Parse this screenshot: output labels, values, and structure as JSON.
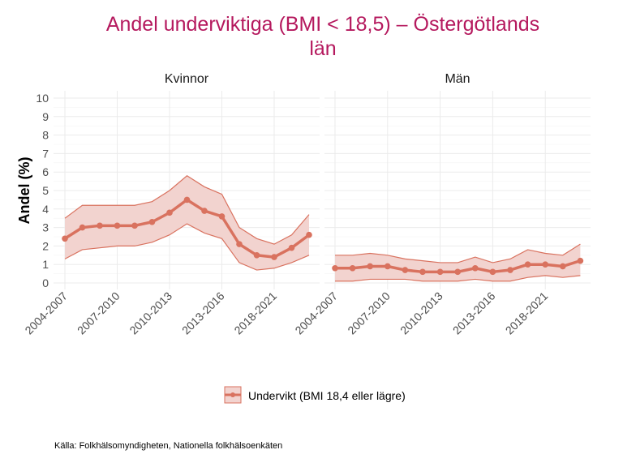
{
  "chart_data": {
    "type": "line",
    "title": "Andel underviktiga (BMI < 18,5) – Östergötlands",
    "title_line2": "län",
    "ylabel": "Andel (%)",
    "xlabel": "",
    "ylim": [
      0,
      10
    ],
    "yticks": [
      0,
      1,
      2,
      3,
      4,
      5,
      6,
      7,
      8,
      9,
      10
    ],
    "categories": [
      "2004-2007",
      "2005-2008",
      "2006-2009",
      "2007-2010",
      "2008-2011",
      "2009-2012",
      "2010-2013",
      "2011-2014",
      "2012-2015",
      "2013-2016",
      "2014-2017",
      "2015-2018",
      "2018-2021",
      "2019-2022",
      "2020-2023"
    ],
    "xtick_labels": [
      "2004-2007",
      "2007-2010",
      "2010-2013",
      "2013-2016",
      "2018-2021"
    ],
    "xtick_indices": [
      0,
      3,
      6,
      9,
      12
    ],
    "legend": {
      "label": "Undervikt (BMI 18,4 eller lägre)",
      "position": "bottom"
    },
    "color": "#d9725f",
    "fill": "#f2d3cf",
    "panels": [
      {
        "name": "Kvinnor",
        "values": [
          2.4,
          3.0,
          3.1,
          3.1,
          3.1,
          3.3,
          3.8,
          4.5,
          3.9,
          3.6,
          2.1,
          1.5,
          1.4,
          1.9,
          2.6
        ],
        "upper": [
          3.5,
          4.2,
          4.2,
          4.2,
          4.2,
          4.4,
          5.0,
          5.8,
          5.2,
          4.8,
          3.0,
          2.4,
          2.1,
          2.6,
          3.7
        ],
        "lower": [
          1.3,
          1.8,
          1.9,
          2.0,
          2.0,
          2.2,
          2.6,
          3.2,
          2.7,
          2.4,
          1.1,
          0.7,
          0.8,
          1.1,
          1.5
        ]
      },
      {
        "name": "Män",
        "values": [
          0.8,
          0.8,
          0.9,
          0.9,
          0.7,
          0.6,
          0.6,
          0.6,
          0.8,
          0.6,
          0.7,
          1.0,
          1.0,
          0.9,
          1.2
        ],
        "upper": [
          1.5,
          1.5,
          1.6,
          1.5,
          1.3,
          1.2,
          1.1,
          1.1,
          1.4,
          1.1,
          1.3,
          1.8,
          1.6,
          1.5,
          2.1
        ],
        "lower": [
          0.1,
          0.1,
          0.2,
          0.2,
          0.2,
          0.1,
          0.1,
          0.1,
          0.2,
          0.1,
          0.1,
          0.3,
          0.4,
          0.3,
          0.4
        ]
      }
    ],
    "caption": "Källa: Folkhälsomyndigheten, Nationella folkhälsoenkäten"
  }
}
